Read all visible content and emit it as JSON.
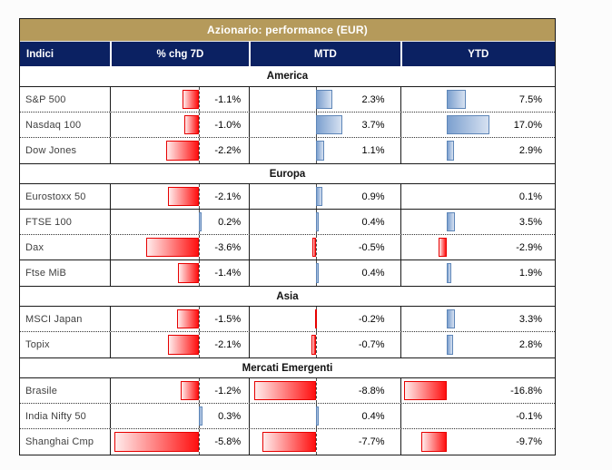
{
  "title": "Azionario: performance (EUR)",
  "chart_data": {
    "type": "table",
    "title": "Azionario: performance (EUR)",
    "columns": [
      "Indici",
      "% chg 7D",
      "MTD",
      "YTD"
    ],
    "value_format": "percent_one_decimal",
    "legend": {
      "negative_bar_color": "#ff0000",
      "positive_bar_color": "#638ec6",
      "title_bg": "#b59a5b",
      "header_bg": "#0b2162"
    },
    "sections": [
      {
        "name": "America",
        "rows": [
          {
            "label": "S&P 500",
            "chg7d": -1.1,
            "mtd": 2.3,
            "ytd": 7.5,
            "divider": "dotted"
          },
          {
            "label": "Nasdaq 100",
            "chg7d": -1.0,
            "mtd": 3.7,
            "ytd": 17.0,
            "divider": "dotted"
          },
          {
            "label": "Dow Jones",
            "chg7d": -2.2,
            "mtd": 1.1,
            "ytd": 2.9,
            "divider": "none"
          }
        ]
      },
      {
        "name": "Europa",
        "rows": [
          {
            "label": "Eurostoxx 50",
            "chg7d": -2.1,
            "mtd": 0.9,
            "ytd": 0.1,
            "divider": "solid"
          },
          {
            "label": "FTSE 100",
            "chg7d": 0.2,
            "mtd": 0.4,
            "ytd": 3.5,
            "divider": "dotted"
          },
          {
            "label": "Dax",
            "chg7d": -3.6,
            "mtd": -0.5,
            "ytd": -2.9,
            "divider": "solid"
          },
          {
            "label": "Ftse MiB",
            "chg7d": -1.4,
            "mtd": 0.4,
            "ytd": 1.9,
            "divider": "none"
          }
        ]
      },
      {
        "name": "Asia",
        "rows": [
          {
            "label": "MSCI Japan",
            "chg7d": -1.5,
            "mtd": -0.2,
            "ytd": 3.3,
            "divider": "dotted"
          },
          {
            "label": "Topix",
            "chg7d": -2.1,
            "mtd": -0.7,
            "ytd": 2.8,
            "divider": "none"
          }
        ]
      },
      {
        "name": "Mercati Emergenti",
        "rows": [
          {
            "label": "Brasile",
            "chg7d": -1.2,
            "mtd": -8.8,
            "ytd": -16.8,
            "divider": "dotted"
          },
          {
            "label": "India Nifty 50",
            "chg7d": 0.3,
            "mtd": 0.4,
            "ytd": -0.1,
            "divider": "dotted"
          },
          {
            "label": "Shanghai Cmp",
            "chg7d": -5.8,
            "mtd": -7.7,
            "ytd": -9.7,
            "divider": "none"
          }
        ]
      }
    ]
  }
}
